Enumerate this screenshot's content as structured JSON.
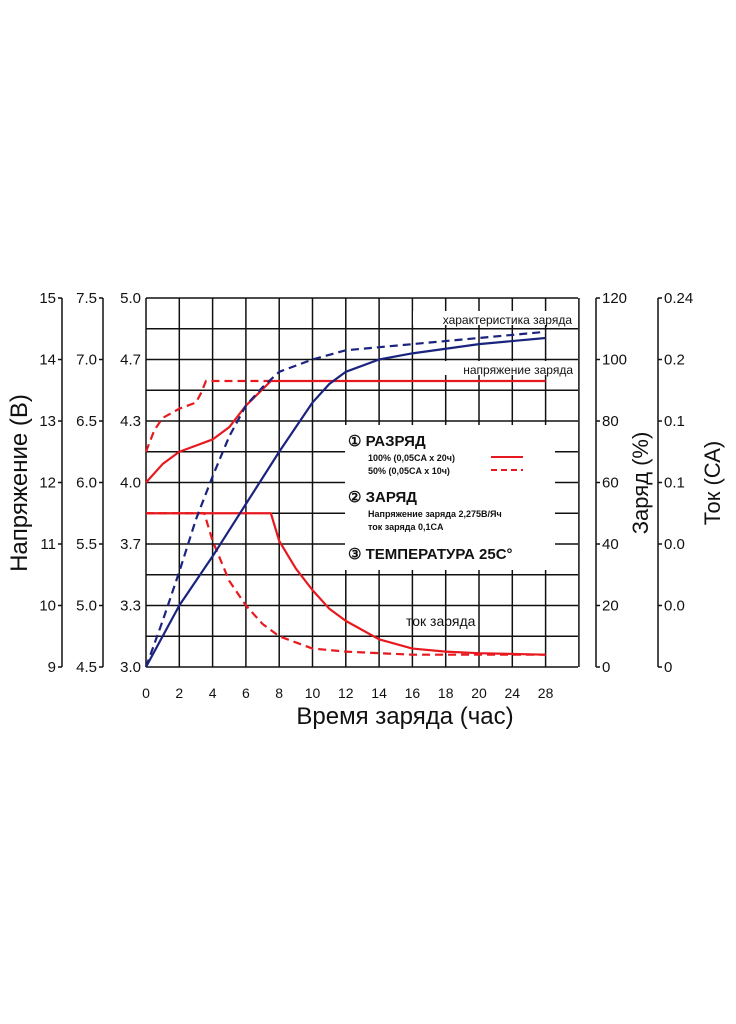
{
  "chart_data": {
    "type": "line",
    "xlabel": "Время заряда (час)",
    "x_ticks": [
      "0",
      "2",
      "4",
      "6",
      "8",
      "10",
      "12",
      "14",
      "16",
      "18",
      "20",
      "24",
      "28"
    ],
    "xlim": [
      0,
      28
    ],
    "grid": true,
    "axes": [
      {
        "side": "left",
        "label": "Напряжение (В)",
        "ticks": [
          "15",
          "14",
          "13",
          "12",
          "11",
          "10",
          "9"
        ]
      },
      {
        "side": "left",
        "label": "",
        "ticks": [
          "7.5",
          "7.0",
          "6.5",
          "6.0",
          "5.5",
          "5.0",
          "4.5"
        ]
      },
      {
        "side": "left",
        "label": "",
        "ticks": [
          "5.0",
          "4.7",
          "4.3",
          "4.0",
          "3.7",
          "3.3",
          "3.0"
        ]
      },
      {
        "side": "right",
        "label": "Заряд (%)",
        "ticks": [
          "120",
          "100",
          "80",
          "60",
          "40",
          "20",
          "0"
        ],
        "ylim": [
          0,
          120
        ]
      },
      {
        "side": "right",
        "label": "Ток (СА)",
        "ticks": [
          "0.24",
          "0.2",
          "0.1",
          "0.1",
          "0.0",
          "0.0",
          "0"
        ]
      }
    ],
    "annotations": [
      "характеристика заряда",
      "напряжение заряда",
      "ток заряда"
    ],
    "series_note_units": "y values in the Заряд (%) axis scale",
    "series": [
      {
        "curve": "charge-voltage",
        "style": "solid",
        "color": "#e8191e",
        "x": [
          0,
          1,
          2,
          3,
          4,
          5,
          6,
          7.5,
          24
        ],
        "y": [
          60,
          66,
          70,
          72,
          74,
          78,
          85,
          93,
          93
        ]
      },
      {
        "curve": "charge-voltage",
        "style": "dashed",
        "color": "#e8191e",
        "x": [
          0,
          0.5,
          1,
          2,
          3,
          3.3,
          3.6,
          7.5
        ],
        "y": [
          70,
          77,
          81,
          84,
          86,
          89,
          93,
          93
        ]
      },
      {
        "curve": "charge-current",
        "style": "solid",
        "color": "#e8191e",
        "x": [
          0,
          7.5,
          8,
          9,
          10,
          11,
          12,
          14,
          16,
          18,
          20,
          24
        ],
        "y": [
          50,
          50,
          41,
          32,
          25,
          19,
          15,
          9,
          6,
          5,
          4.5,
          4
        ]
      },
      {
        "curve": "charge-current",
        "style": "dashed",
        "color": "#e8191e",
        "x": [
          0,
          3.5,
          4,
          5,
          6,
          7,
          8,
          10,
          12,
          16,
          24
        ],
        "y": [
          50,
          50,
          41,
          28,
          20,
          14,
          10,
          6,
          5,
          4,
          4
        ]
      },
      {
        "curve": "charge-capacity",
        "style": "solid",
        "color": "#1a237e",
        "x": [
          0,
          2,
          4,
          6,
          8,
          10,
          11,
          12,
          14,
          16,
          20,
          24
        ],
        "y": [
          0,
          20,
          36,
          53,
          70,
          86,
          92,
          96,
          100,
          102,
          105,
          107
        ]
      },
      {
        "curve": "charge-capacity",
        "style": "dashed",
        "color": "#1a237e",
        "x": [
          0,
          1,
          2,
          3,
          4,
          5,
          6,
          7,
          8,
          10,
          12,
          16,
          20,
          24
        ],
        "y": [
          0,
          15,
          31,
          48,
          62,
          75,
          85,
          91,
          96,
          100,
          103,
          105,
          107,
          109
        ]
      }
    ],
    "legend": {
      "placement": "center-right",
      "items": [
        {
          "num": "①",
          "title": "РАЗРЯД",
          "lines": [
            "100% (0,05CA x 20ч)",
            "50% (0,05CA x 10ч)"
          ]
        },
        {
          "num": "②",
          "title": "ЗАРЯД",
          "lines": [
            "Напряжение заряда 2,275В/Яч",
            "ток заряда 0,1CA"
          ]
        },
        {
          "num": "③",
          "title": "ТЕМПЕРАТУРА 25C°",
          "lines": []
        }
      ]
    }
  }
}
